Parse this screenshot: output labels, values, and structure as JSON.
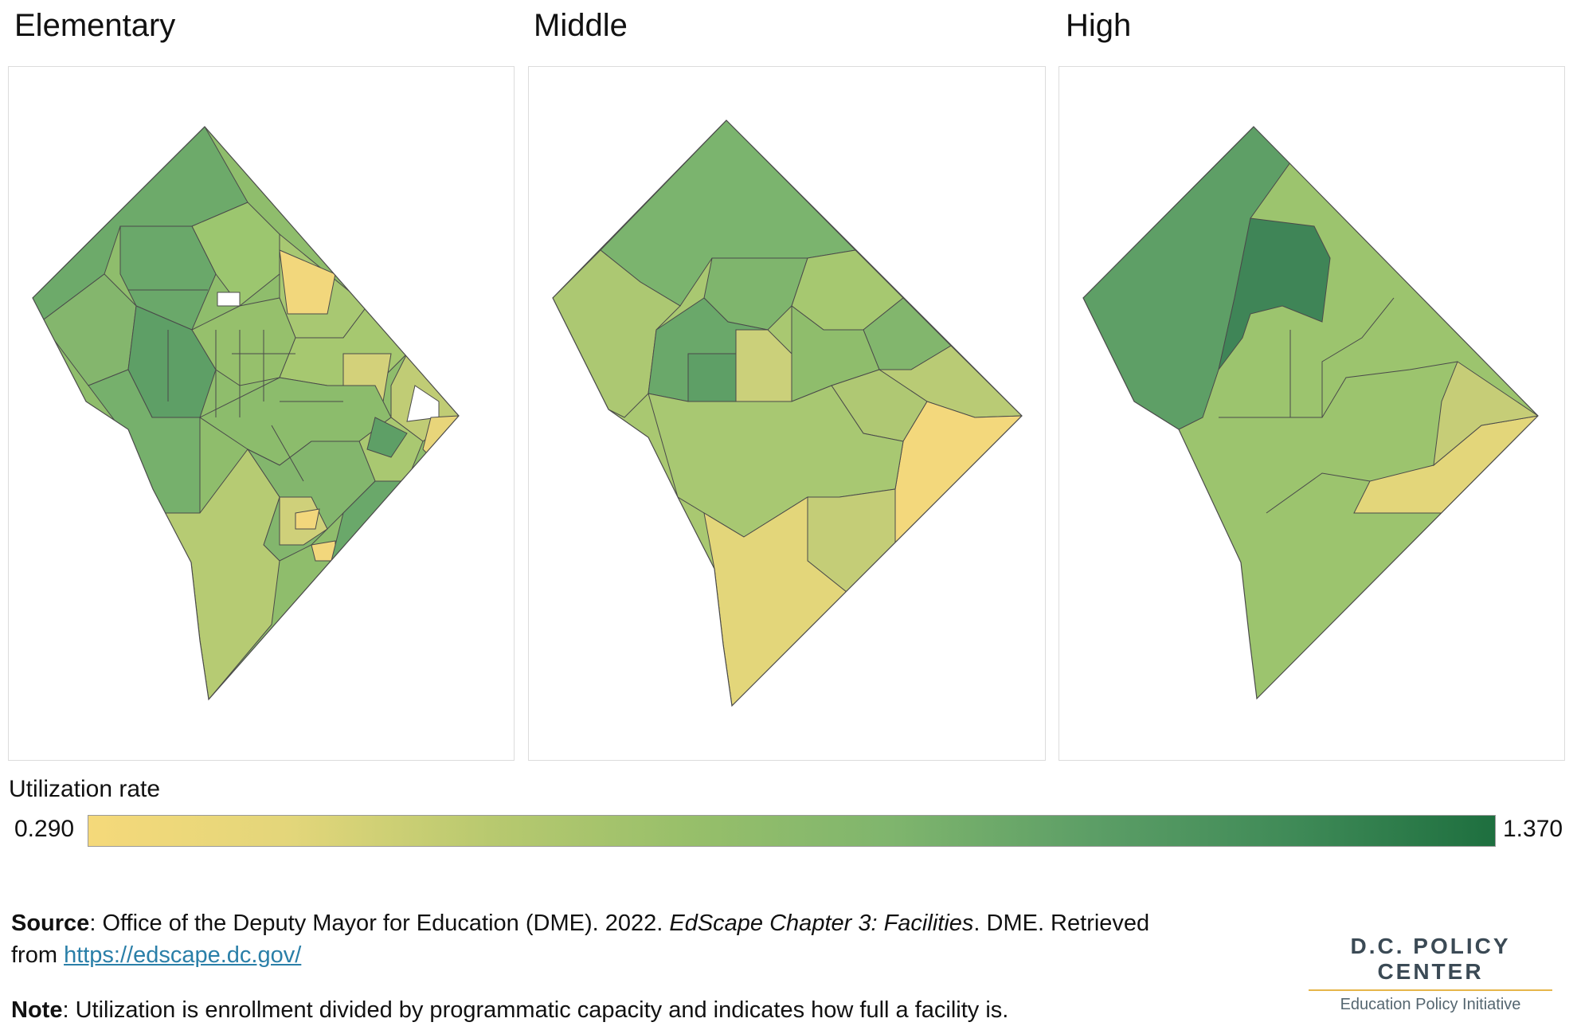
{
  "panels": [
    {
      "id": "elementary",
      "title": "Elementary"
    },
    {
      "id": "middle",
      "title": "Middle"
    },
    {
      "id": "high",
      "title": "High"
    }
  ],
  "legend": {
    "title": "Utilization rate",
    "min_label": "0.290",
    "max_label": "1.370",
    "min": 0.29,
    "max": 1.37,
    "colors": [
      "#f5d97a",
      "#e3d67a",
      "#b8c96f",
      "#97bf6a",
      "#7fb56d",
      "#5c9e66",
      "#3f8a57",
      "#1e6f3f"
    ]
  },
  "footer": {
    "source_label": "Source",
    "source_text_1": ": Office of the Deputy Mayor for Education (DME). 2022. ",
    "source_italic": "EdScape Chapter 3: Facilities",
    "source_text_2": ". DME. Retrieved",
    "source_text_3": "from ",
    "source_link": "https://edscape.dc.gov/",
    "note_label": "Note",
    "note_text": ": Utilization is enrollment divided by programmatic capacity and indicates how full a facility is."
  },
  "brand": {
    "name": "D.C. POLICY CENTER",
    "subtitle": "Education Policy Initiative"
  }
}
